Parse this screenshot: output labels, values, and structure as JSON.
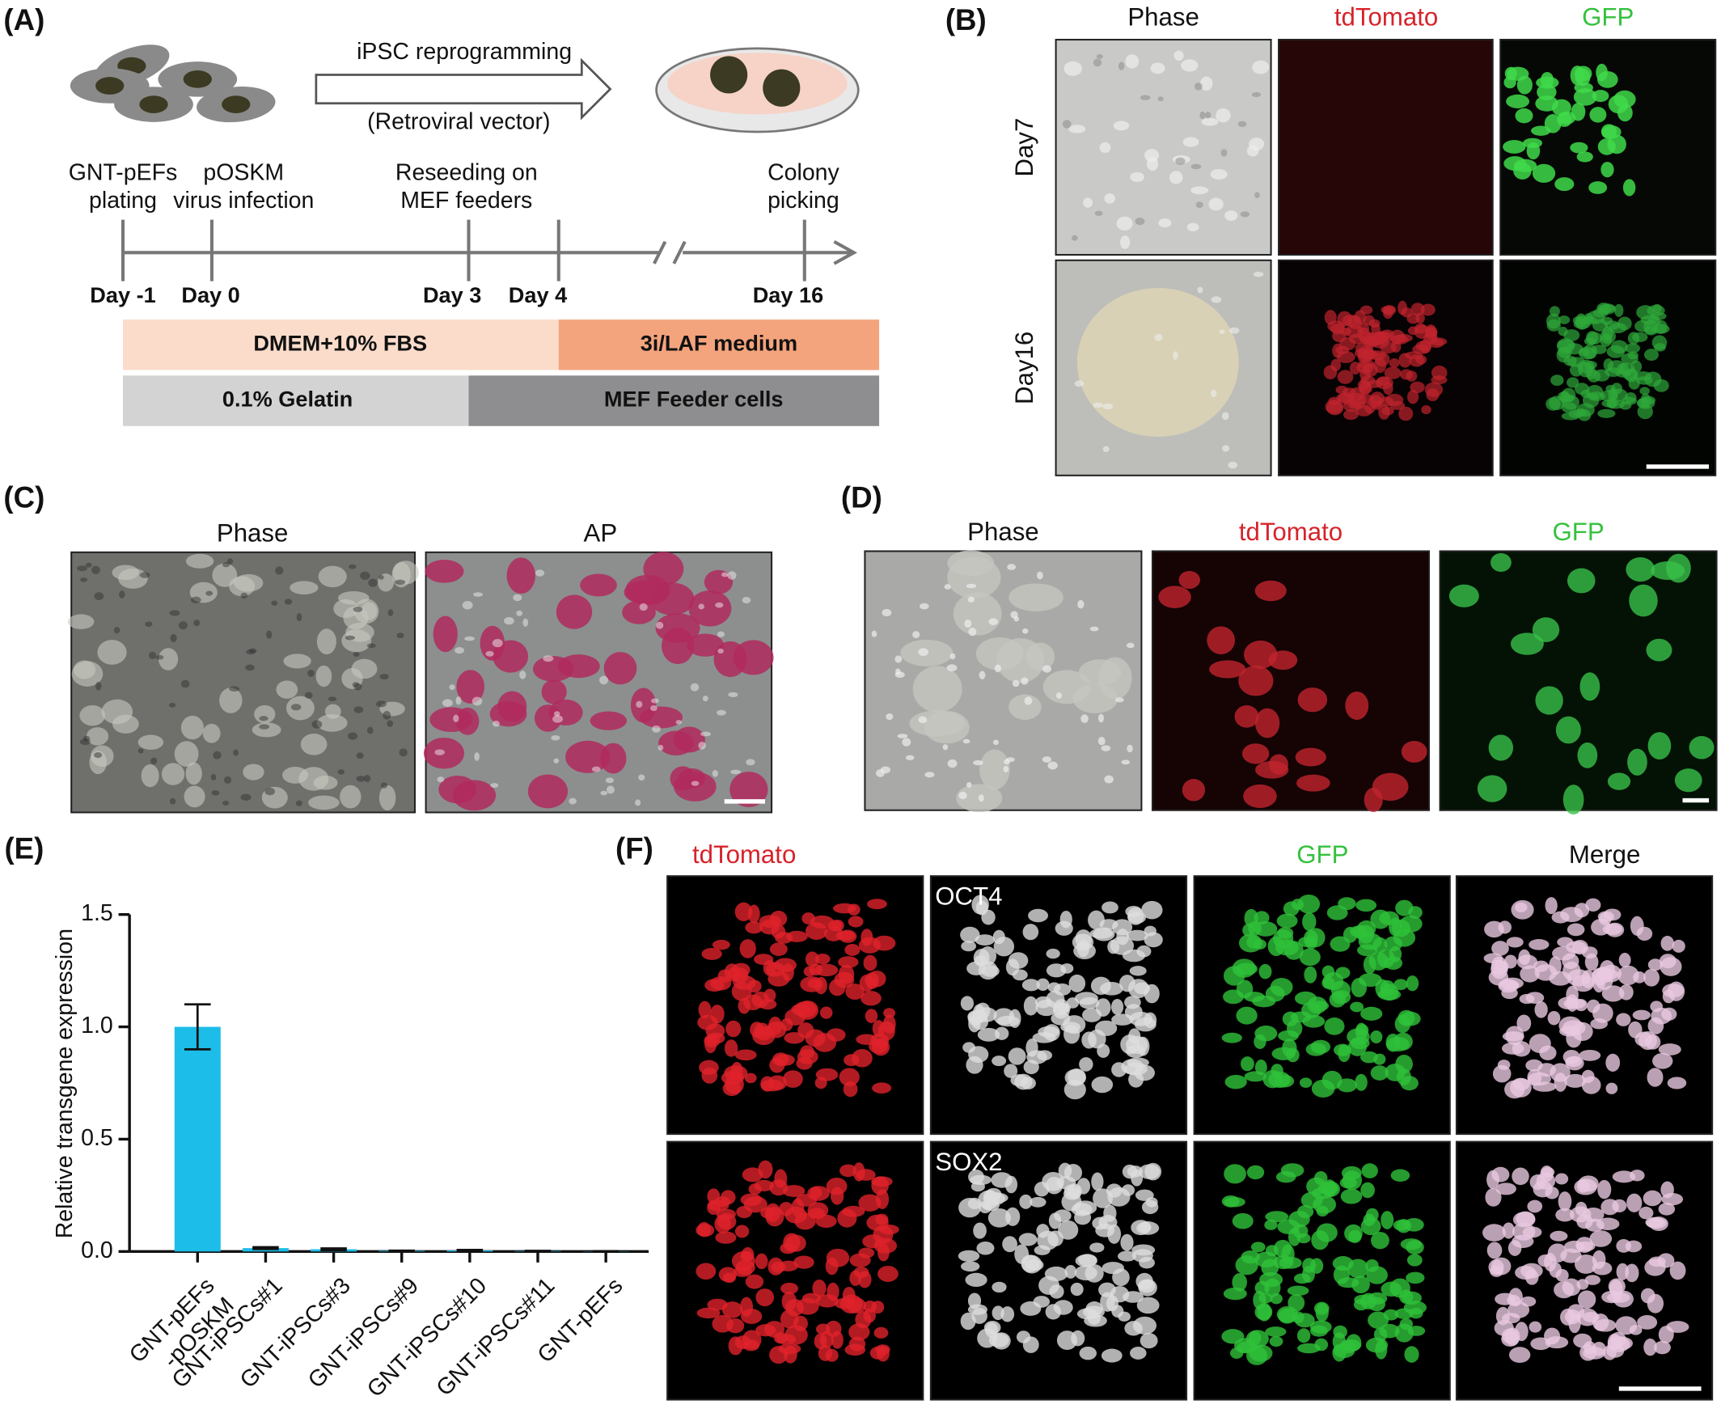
{
  "panel_a": {
    "label": "(A)",
    "arrow_top": "iPSC reprogramming",
    "arrow_bottom": "(Retroviral vector)",
    "events": [
      "GNT-pEFs\nplating",
      "pOSKM\nvirus infection",
      "Reseeding on\nMEF feeders",
      "Colony\npicking"
    ],
    "days": [
      "Day -1",
      "Day 0",
      "Day 3",
      "Day 4",
      "Day 16"
    ],
    "media": [
      "DMEM+10% FBS",
      "3i/LAF medium"
    ],
    "substrates": [
      "0.1% Gelatin",
      "MEF Feeder cells"
    ]
  },
  "panel_b": {
    "label": "(B)",
    "columns": [
      "Phase",
      "tdTomato",
      "GFP"
    ],
    "rows": [
      "Day7",
      "Day16"
    ]
  },
  "panel_c": {
    "label": "(C)",
    "columns": [
      "Phase",
      "AP"
    ]
  },
  "panel_d": {
    "label": "(D)",
    "columns": [
      "Phase",
      "tdTomato",
      "GFP"
    ]
  },
  "panel_e": {
    "label": "(E)"
  },
  "panel_f": {
    "label": "(F)",
    "columns": [
      "tdTomato",
      "GFP",
      "Merge"
    ],
    "markers": [
      "OCT4",
      "SOX2"
    ]
  },
  "chart_data": {
    "type": "bar",
    "ylabel": "Relative transgene expression",
    "categories": [
      "GNT-pEFs\n-pOSKM",
      "GNT-iPSCs#1",
      "GNT-iPSCs#3",
      "GNT-iPSCs#9",
      "GNT-iPSCs#10",
      "GNT-iPSCs#11",
      "GNT-pEFs"
    ],
    "values": [
      1.0,
      0.015,
      0.01,
      0.003,
      0.005,
      0.002,
      0.001
    ],
    "errors": [
      0.1,
      0.004,
      0.004,
      0.001,
      0.002,
      0.001,
      0.0005
    ],
    "color": "#1cbde8",
    "ylim": [
      0,
      1.5
    ],
    "yticks": [
      {
        "value": 0,
        "label": "0.0"
      },
      0.5,
      {
        "value": 1,
        "label": "1.0"
      },
      1.5
    ]
  }
}
